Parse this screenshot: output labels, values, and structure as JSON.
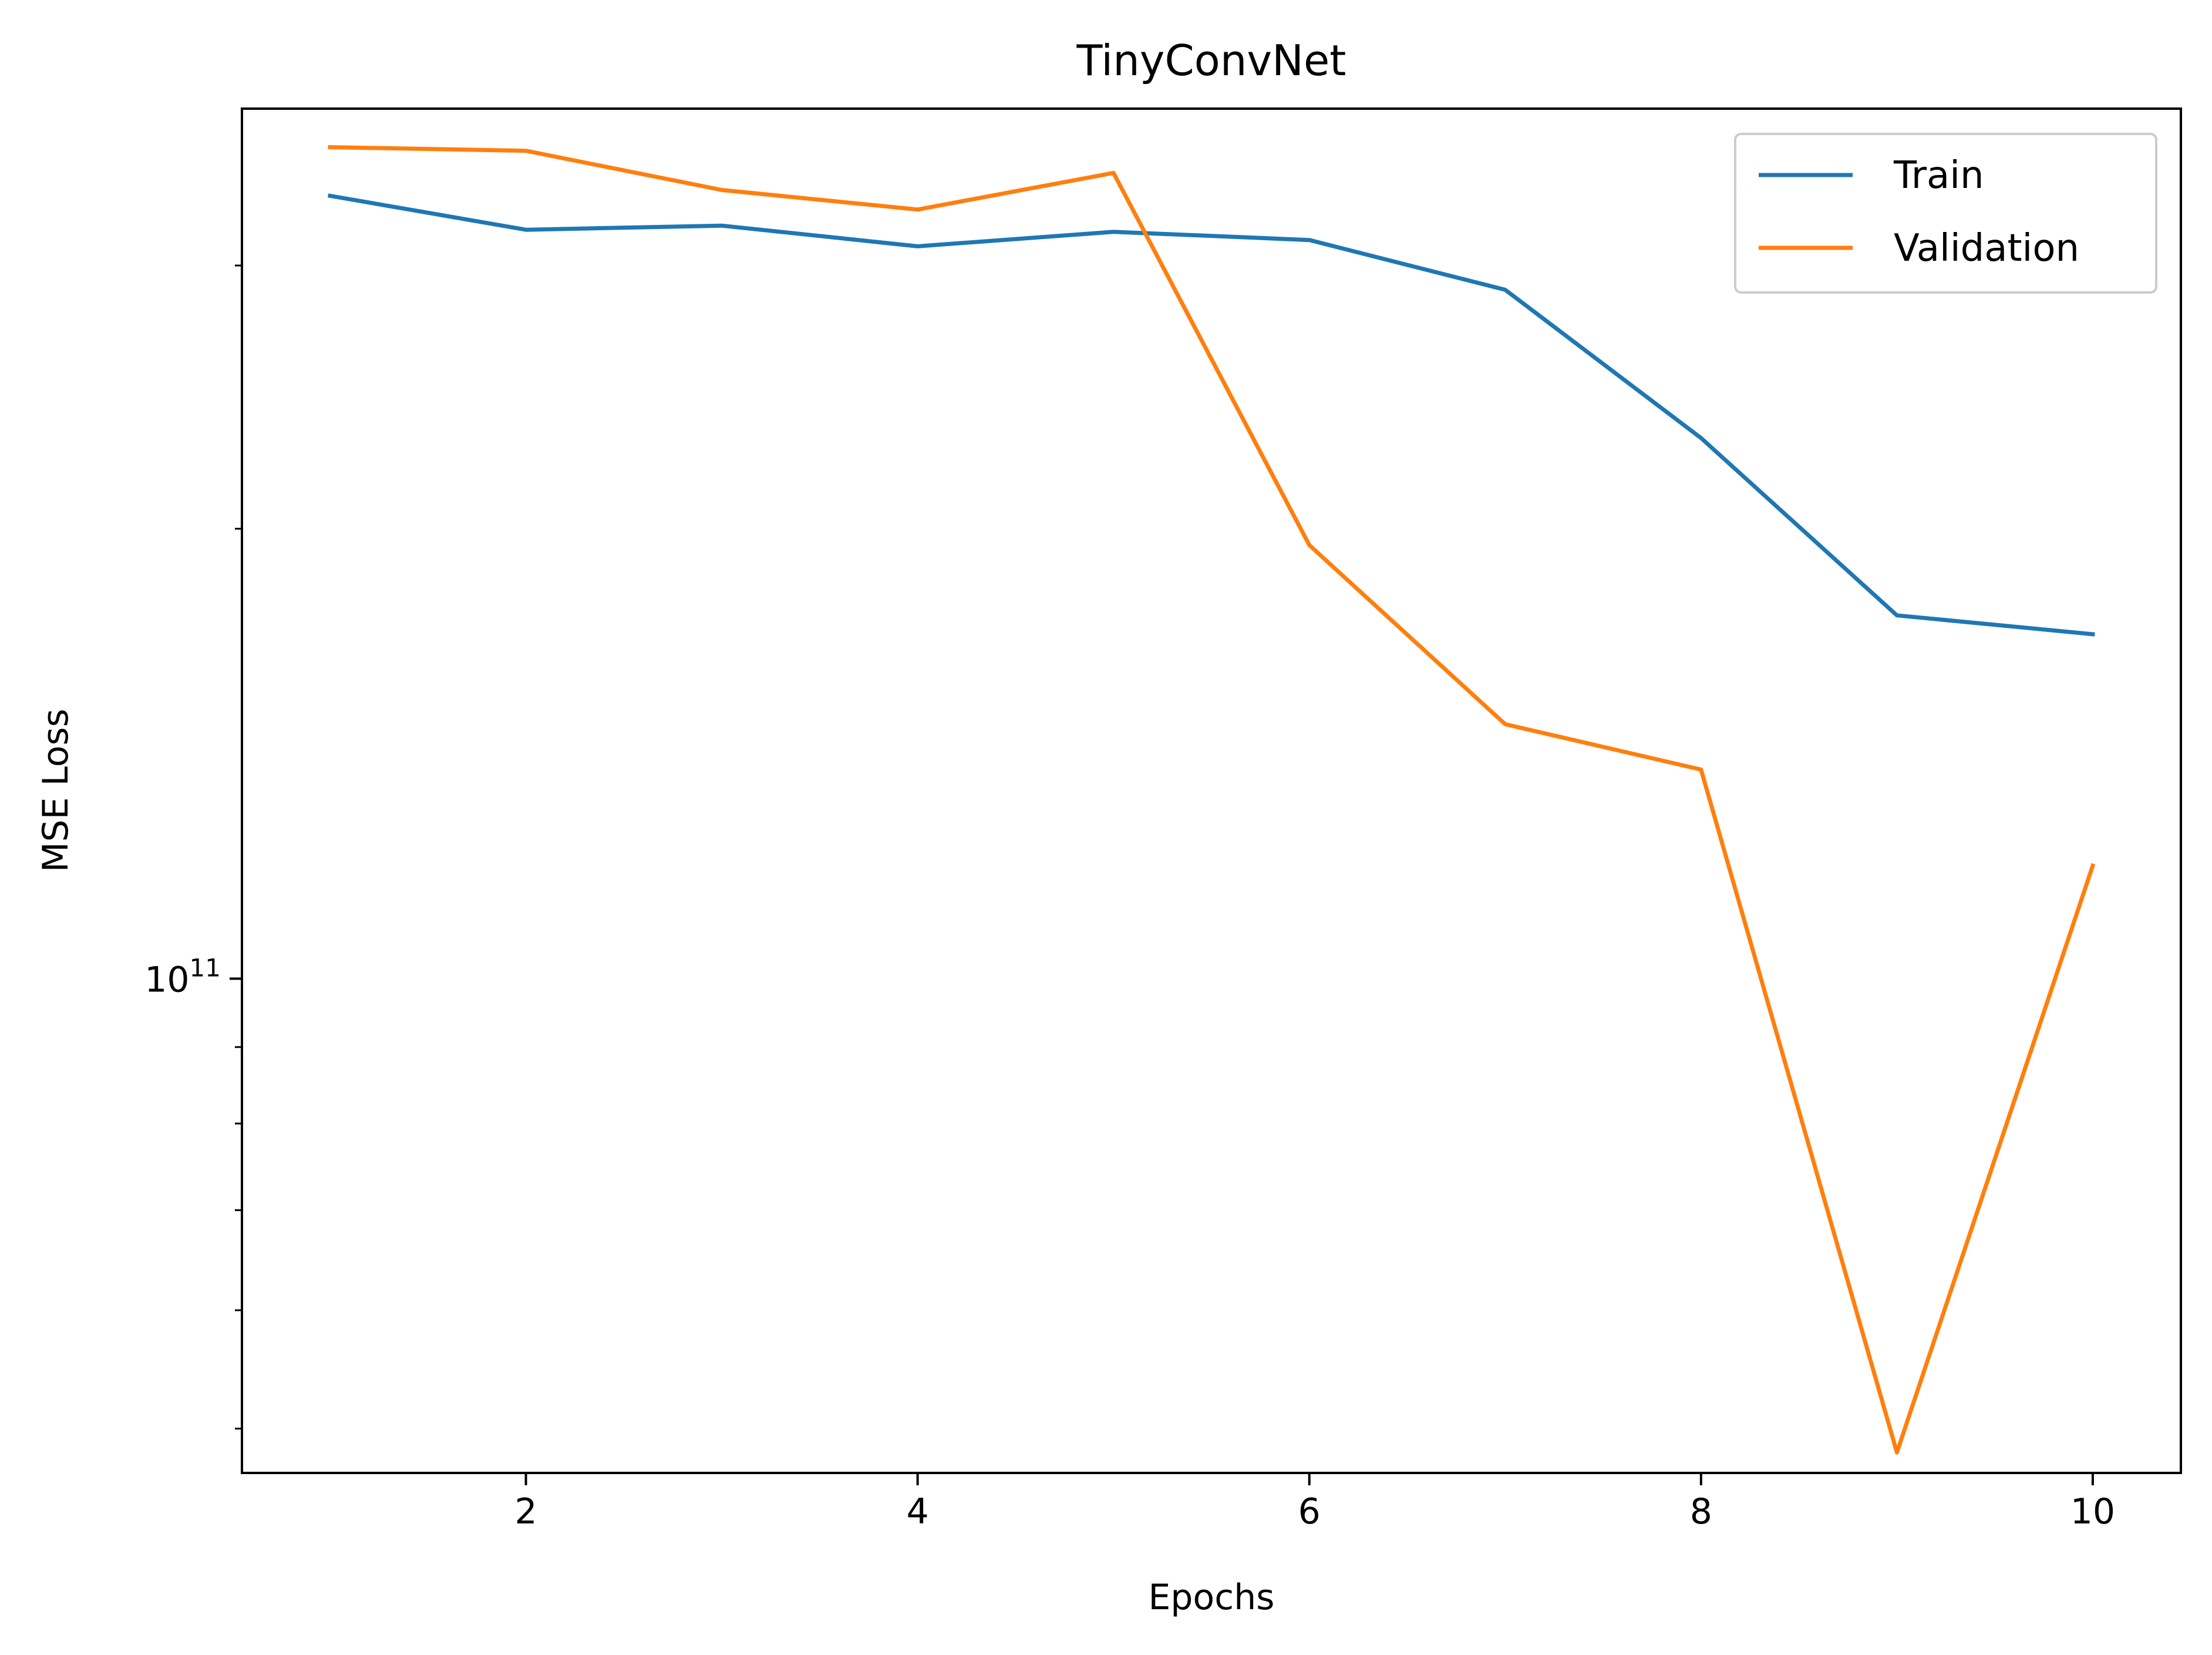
{
  "chart_data": {
    "type": "line",
    "title": "TinyConvNet",
    "xlabel": "Epochs",
    "ylabel": "MSE Loss",
    "yscale": "log",
    "xlim": [
      0.55,
      10.45
    ],
    "ylim": [
      46700000000.0,
      382000000000.0
    ],
    "x": [
      1,
      2,
      3,
      4,
      5,
      6,
      7,
      8,
      9,
      10
    ],
    "x_ticks": [
      {
        "value": 2,
        "label": "2"
      },
      {
        "value": 4,
        "label": "4"
      },
      {
        "value": 6,
        "label": "6"
      },
      {
        "value": 8,
        "label": "8"
      },
      {
        "value": 10,
        "label": "10"
      }
    ],
    "y_major_ticks": [
      {
        "value": 100000000000.0,
        "base": "10",
        "exponent": "11"
      }
    ],
    "y_minor_ticks": [
      50000000000.0,
      60000000000.0,
      70000000000.0,
      80000000000.0,
      90000000000.0,
      200000000000.0,
      300000000000.0
    ],
    "series": [
      {
        "name": "Train",
        "color": "#1f77b4",
        "values": [
          334000000000.0,
          317000000000.0,
          319000000000.0,
          309000000000.0,
          316000000000.0,
          312000000000.0,
          289000000000.0,
          230000000000.0,
          175000000000.0,
          170000000000.0
        ]
      },
      {
        "name": "Validation",
        "color": "#ff7f0e",
        "values": [
          360000000000.0,
          358000000000.0,
          337000000000.0,
          327000000000.0,
          346000000000.0,
          195000000000.0,
          148000000000.0,
          138000000000.0,
          48200000000.0,
          119000000000.0
        ]
      }
    ],
    "legend": {
      "position": "top-right"
    },
    "grid": false
  }
}
